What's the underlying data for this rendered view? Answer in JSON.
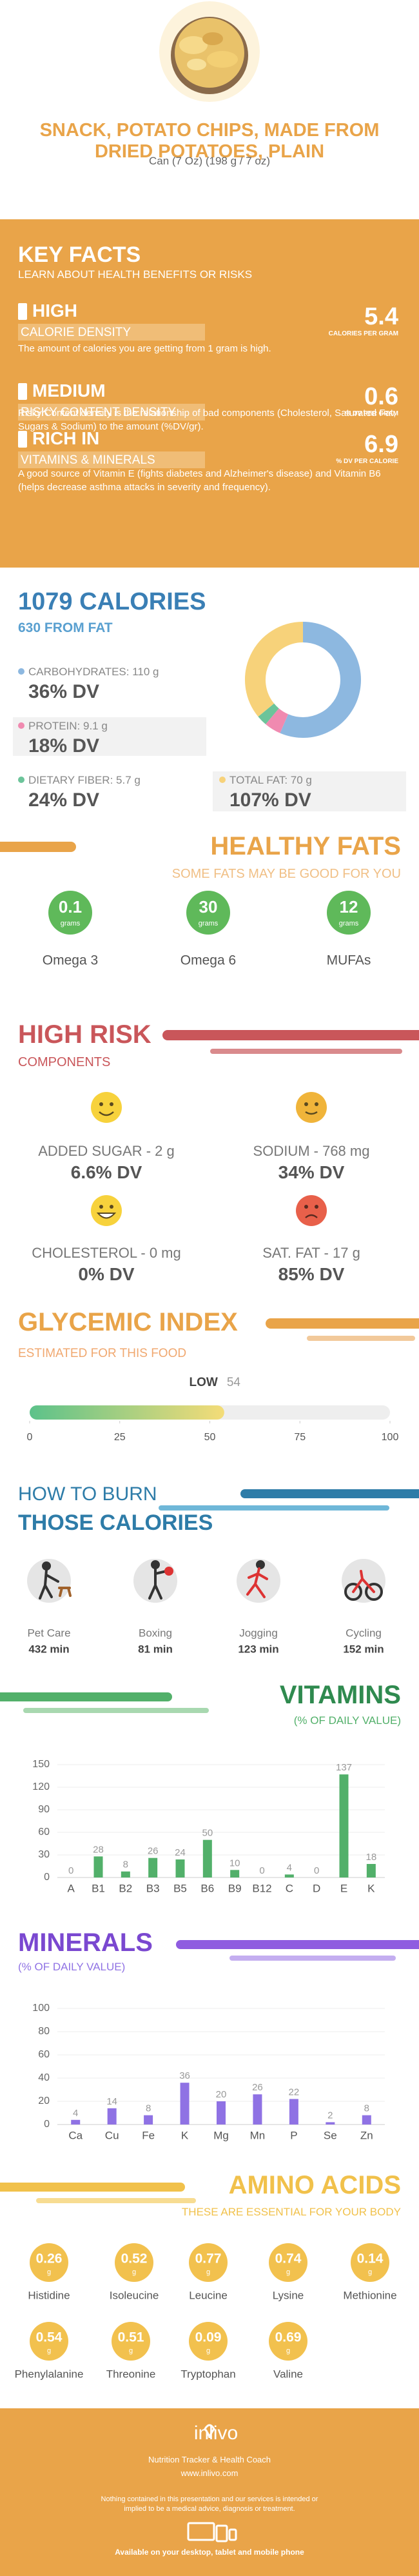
{
  "header": {
    "title": "SNACK, POTATO CHIPS, MADE FROM DRIED POTATOES, PLAIN",
    "serving": "Can (7 Oz) (198 g / 7 oz)"
  },
  "key_facts": {
    "title": "KEY FACTS",
    "subtitle": "LEARN ABOUT HEALTH BENEFITS OR RISKS",
    "items": [
      {
        "level": "HIGH",
        "name": "CALORIE DENSITY",
        "value": "5.4",
        "unit": "CALORIES PER GRAM",
        "text": "The amount of calories you are getting from 1 gram is high."
      },
      {
        "level": "MEDIUM",
        "name": "RISKY CONTENT DENSITY",
        "value": "0.6",
        "unit": "% DV PER GRAM",
        "text": "Risky Content density is the relationship of bad components (Cholesterol, Saturated Fat, Sugars & Sodium) to the amount (%DV/gr)."
      },
      {
        "level": "RICH IN",
        "name": "VITAMINS & MINERALS",
        "value": "6.9",
        "unit": "% DV PER CALORIE",
        "text": "A good source of Vitamin E (fights diabetes and Alzheimer's disease) and Vitamin B6 (helps decrease asthma attacks in severity and frequency)."
      }
    ]
  },
  "calories": {
    "title": "1079 CALORIES",
    "subtitle": "630 FROM FAT",
    "items": [
      {
        "label": "CARBOHYDRATES: 110 g",
        "dv": "36% DV",
        "grams": 110,
        "color": "#8db8e0"
      },
      {
        "label": "PROTEIN: 9.1 g",
        "dv": "18% DV",
        "grams": 9.1,
        "color": "#f08ab0"
      },
      {
        "label": "DIETARY FIBER: 5.7 g",
        "dv": "24% DV",
        "grams": 5.7,
        "color": "#6cc49a"
      },
      {
        "label": "TOTAL FAT: 70 g",
        "dv": "107% DV",
        "grams": 70,
        "color": "#f7d27a"
      }
    ]
  },
  "healthy_fats": {
    "title": "HEALTHY FATS",
    "subtitle": "SOME FATS MAY BE GOOD FOR YOU",
    "unit": "grams",
    "items": [
      {
        "value": "0.1",
        "name": "Omega 3"
      },
      {
        "value": "30",
        "name": "Omega 6"
      },
      {
        "value": "12",
        "name": "MUFAs"
      }
    ]
  },
  "high_risk": {
    "title": "HIGH RISK",
    "subtitle": "COMPONENTS",
    "items": [
      {
        "label": "ADDED SUGAR - 2 g",
        "dv": "6.6% DV"
      },
      {
        "label": "SODIUM - 768 mg",
        "dv": "34% DV"
      },
      {
        "label": "CHOLESTEROL - 0 mg",
        "dv": "0% DV"
      },
      {
        "label": "SAT. FAT - 17 g",
        "dv": "85% DV"
      }
    ]
  },
  "glycemic_index": {
    "title": "GLYCEMIC INDEX",
    "subtitle": "ESTIMATED FOR THIS FOOD",
    "label": "LOW",
    "value": 54,
    "xlim": [
      0,
      100
    ],
    "xticks": [
      0,
      25,
      50,
      75,
      100
    ]
  },
  "burn": {
    "title_1": "HOW TO BURN",
    "title_2": "THOSE CALORIES",
    "items": [
      {
        "name": "Pet Care",
        "time": "432 min"
      },
      {
        "name": "Boxing",
        "time": "81 min"
      },
      {
        "name": "Jogging",
        "time": "123 min"
      },
      {
        "name": "Cycling",
        "time": "152 min"
      }
    ]
  },
  "chart_data": [
    {
      "type": "bar",
      "title": "VITAMINS",
      "subtitle": "(% OF DAILY VALUE)",
      "color": "#52b06a",
      "categories": [
        "A",
        "B1",
        "B2",
        "B3",
        "B5",
        "B6",
        "B9",
        "B12",
        "C",
        "D",
        "E",
        "K"
      ],
      "values": [
        0,
        28,
        8,
        26,
        24,
        50,
        10,
        0,
        4,
        0,
        137,
        18
      ],
      "ylim": [
        0,
        150
      ],
      "yticks": [
        0,
        30,
        60,
        90,
        120,
        150
      ],
      "grid": true
    },
    {
      "type": "bar",
      "title": "MINERALS",
      "subtitle": "(% OF DAILY VALUE)",
      "color": "#8f72e4",
      "categories": [
        "Ca",
        "Cu",
        "Fe",
        "K",
        "Mg",
        "Mn",
        "P",
        "Se",
        "Zn"
      ],
      "values": [
        4,
        14,
        8,
        36,
        20,
        26,
        22,
        2,
        8
      ],
      "ylim": [
        0,
        100
      ],
      "yticks": [
        0,
        20,
        40,
        60,
        80,
        100
      ],
      "grid": true
    }
  ],
  "amino_acids": {
    "title": "AMINO ACIDS",
    "subtitle": "THESE ARE ESSENTIAL FOR YOUR BODY",
    "unit": "g",
    "items": [
      {
        "value": "0.26",
        "name": "Histidine"
      },
      {
        "value": "0.52",
        "name": "Isoleucine"
      },
      {
        "value": "0.77",
        "name": "Leucine"
      },
      {
        "value": "0.74",
        "name": "Lysine"
      },
      {
        "value": "0.14",
        "name": "Methionine"
      },
      {
        "value": "0.54",
        "name": "Phenylalanine"
      },
      {
        "value": "0.51",
        "name": "Threonine"
      },
      {
        "value": "0.09",
        "name": "Tryptophan"
      },
      {
        "value": "0.69",
        "name": "Valine"
      }
    ]
  },
  "footer": {
    "brand": "inlivo",
    "tagline": "Nutrition Tracker & Health Coach",
    "url": "www.inlivo.com",
    "disclaimer": "Nothing contained in this presentation and our services is intended or implied to be a medical advice, diagnosis or treatment.",
    "available": "Available on your desktop, tablet and mobile phone"
  }
}
